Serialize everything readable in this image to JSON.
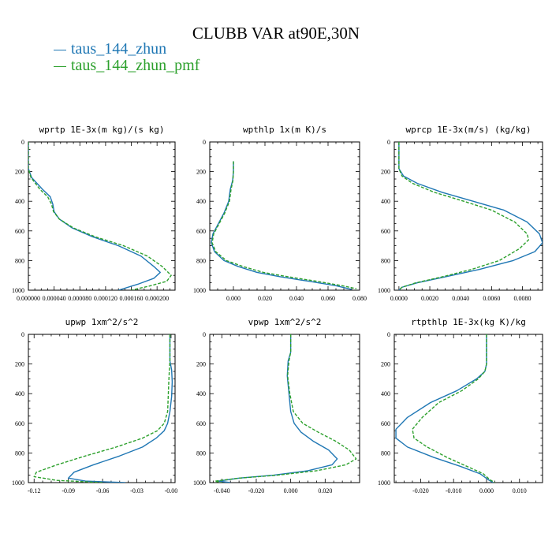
{
  "title": "CLUBB VAR at90E,30N",
  "legend": [
    {
      "label": "taus_144_zhun",
      "color": "#1f77b4"
    },
    {
      "label": "taus_144_zhun_pmf",
      "color": "#2ca02c"
    }
  ],
  "chart_data": [
    {
      "type": "line",
      "title": "wprtp  1E-3x(m kg)/(s kg)",
      "xlim": [
        0.0,
        0.000228
      ],
      "ylim": [
        0,
        1000
      ],
      "y_inverted": true,
      "xticks": [
        0.0,
        4e-05,
        8e-05,
        0.00012,
        0.00016,
        0.0002
      ],
      "xtick_labels": [
        "0.000000",
        "0.000040",
        "0.000080",
        "0.000120",
        "0.000160",
        "0.000200"
      ],
      "yticks": [
        0,
        200,
        400,
        600,
        800,
        1000
      ],
      "series": [
        {
          "name": "taus_144_zhun",
          "color": "#1f77b4",
          "dash": "solid",
          "x": [
            0.0,
            0.0,
            5e-06,
            2.2e-05,
            3.4e-05,
            3.8e-05,
            4e-05,
            4.8e-05,
            6.8e-05,
            0.0001,
            0.00014,
            0.000175,
            0.000195,
            0.000205,
            0.000195,
            0.00017,
            0.00014
          ],
          "y": [
            0,
            180,
            240,
            320,
            370,
            420,
            470,
            520,
            580,
            640,
            700,
            770,
            840,
            880,
            920,
            960,
            1000
          ]
        },
        {
          "name": "taus_144_zhun_pmf",
          "color": "#2ca02c",
          "dash": "dashed",
          "x": [
            0.0,
            0.0,
            4e-06,
            1.8e-05,
            3e-05,
            3.6e-05,
            3.9e-05,
            4.8e-05,
            7e-05,
            0.000104,
            0.000148,
            0.000185,
            0.000208,
            0.000222,
            0.000215,
            0.00019,
            0.00016
          ],
          "y": [
            0,
            180,
            240,
            320,
            370,
            420,
            470,
            520,
            580,
            640,
            700,
            770,
            840,
            900,
            940,
            970,
            1000
          ]
        }
      ]
    },
    {
      "type": "line",
      "title": "wpthlp  1x(m K)/s",
      "xlim": [
        -0.015,
        0.08
      ],
      "ylim": [
        0,
        1000
      ],
      "y_inverted": true,
      "xticks": [
        0.0,
        0.02,
        0.04,
        0.06,
        0.08
      ],
      "xtick_labels": [
        "0.000",
        "0.020",
        "0.040",
        "0.060",
        "0.080"
      ],
      "yticks": [
        0,
        200,
        400,
        600,
        800,
        1000
      ],
      "series": [
        {
          "name": "taus_144_zhun",
          "color": "#1f77b4",
          "dash": "solid",
          "x": [
            0.0,
            0.0,
            -0.0005,
            -0.002,
            -0.003,
            -0.006,
            -0.01,
            -0.013,
            -0.014,
            -0.012,
            -0.006,
            0.003,
            0.015,
            0.03,
            0.048,
            0.065,
            0.075
          ],
          "y": [
            130,
            200,
            260,
            320,
            400,
            480,
            560,
            620,
            680,
            740,
            800,
            840,
            880,
            910,
            940,
            970,
            995
          ]
        },
        {
          "name": "taus_144_zhun_pmf",
          "color": "#2ca02c",
          "dash": "dashed",
          "x": [
            0.0,
            0.0,
            -0.0003,
            -0.0015,
            -0.0025,
            -0.0055,
            -0.0095,
            -0.0125,
            -0.0135,
            -0.0112,
            -0.0045,
            0.006,
            0.019,
            0.035,
            0.053,
            0.069,
            0.078
          ],
          "y": [
            130,
            200,
            260,
            320,
            400,
            480,
            560,
            620,
            680,
            740,
            800,
            840,
            880,
            910,
            940,
            970,
            990
          ]
        }
      ]
    },
    {
      "type": "line",
      "title": "wprcp  1E-3x(m/s) (kg/kg)",
      "xlim": [
        -0.0003,
        0.0093
      ],
      "ylim": [
        0,
        1000
      ],
      "y_inverted": true,
      "xticks": [
        0.0,
        0.002,
        0.004,
        0.006,
        0.008
      ],
      "xtick_labels": [
        "0.0000",
        "0.0020",
        "0.0040",
        "0.0060",
        "0.0080"
      ],
      "yticks": [
        0,
        200,
        400,
        600,
        800,
        1000
      ],
      "series": [
        {
          "name": "taus_144_zhun",
          "color": "#1f77b4",
          "dash": "solid",
          "x": [
            0.0,
            0.0,
            0.0003,
            0.0012,
            0.0028,
            0.0048,
            0.0068,
            0.0083,
            0.0091,
            0.0093,
            0.0088,
            0.0074,
            0.0052,
            0.003,
            0.0012,
            0.0002,
            0.0
          ],
          "y": [
            0,
            180,
            230,
            280,
            340,
            400,
            460,
            540,
            620,
            680,
            740,
            800,
            860,
            910,
            950,
            980,
            1000
          ]
        },
        {
          "name": "taus_144_zhun_pmf",
          "color": "#2ca02c",
          "dash": "dashed",
          "x": [
            0.0,
            0.0,
            0.0002,
            0.0009,
            0.0023,
            0.0042,
            0.006,
            0.0075,
            0.0083,
            0.0084,
            0.0078,
            0.0065,
            0.0047,
            0.0028,
            0.0011,
            0.0002,
            0.0
          ],
          "y": [
            0,
            180,
            230,
            280,
            340,
            400,
            460,
            540,
            620,
            660,
            720,
            800,
            860,
            910,
            950,
            980,
            1000
          ]
        }
      ]
    },
    {
      "type": "line",
      "title": "upwp  1xm^2/s^2",
      "xlim": [
        -0.125,
        0.0035
      ],
      "ylim": [
        0,
        1000
      ],
      "y_inverted": true,
      "xticks": [
        -0.12,
        -0.09,
        -0.06,
        -0.03,
        0.0
      ],
      "xtick_labels": [
        "-0.12",
        "-0.09",
        "-0.06",
        "-0.03",
        "-0.00"
      ],
      "yticks": [
        0,
        200,
        400,
        600,
        800,
        1000
      ],
      "series": [
        {
          "name": "taus_144_zhun",
          "color": "#1f77b4",
          "dash": "solid",
          "x": [
            -0.001,
            -0.001,
            0.0005,
            0.001,
            0.0005,
            -0.001,
            -0.003,
            -0.006,
            -0.013,
            -0.025,
            -0.045,
            -0.068,
            -0.085,
            -0.09,
            -0.075,
            -0.04
          ],
          "y": [
            0,
            180,
            240,
            320,
            420,
            520,
            600,
            650,
            700,
            760,
            820,
            880,
            930,
            970,
            990,
            1000
          ]
        },
        {
          "name": "taus_144_zhun_pmf",
          "color": "#2ca02c",
          "dash": "dashed",
          "x": [
            -0.001,
            -0.001,
            -0.0015,
            -0.002,
            -0.0025,
            -0.003,
            -0.006,
            -0.012,
            -0.025,
            -0.048,
            -0.075,
            -0.1,
            -0.118,
            -0.12,
            -0.1,
            -0.06
          ],
          "y": [
            0,
            180,
            240,
            320,
            420,
            520,
            600,
            650,
            700,
            760,
            820,
            880,
            930,
            960,
            985,
            1000
          ]
        }
      ]
    },
    {
      "type": "line",
      "title": "vpwp  1xm^2/s^2",
      "xlim": [
        -0.047,
        0.04
      ],
      "ylim": [
        0,
        1000
      ],
      "y_inverted": true,
      "xticks": [
        -0.04,
        -0.02,
        0.0,
        0.02
      ],
      "xtick_labels": [
        "-0.040",
        "-0.020",
        "0.000",
        "0.020"
      ],
      "yticks": [
        0,
        200,
        400,
        600,
        800,
        1000
      ],
      "series": [
        {
          "name": "taus_144_zhun",
          "color": "#1f77b4",
          "dash": "solid",
          "x": [
            0.0,
            0.0,
            -0.0015,
            -0.002,
            -0.001,
            0.0,
            0.002,
            0.006,
            0.013,
            0.022,
            0.027,
            0.024,
            0.01,
            -0.01,
            -0.03,
            -0.042,
            -0.035
          ],
          "y": [
            0,
            120,
            180,
            280,
            400,
            520,
            600,
            660,
            720,
            780,
            840,
            880,
            920,
            950,
            970,
            990,
            1000
          ]
        },
        {
          "name": "taus_144_zhun_pmf",
          "color": "#2ca02c",
          "dash": "dashed",
          "x": [
            0.0,
            0.0,
            -0.001,
            -0.0018,
            -0.0005,
            0.0015,
            0.007,
            0.016,
            0.026,
            0.034,
            0.038,
            0.032,
            0.015,
            -0.008,
            -0.03,
            -0.044,
            -0.04
          ],
          "y": [
            0,
            120,
            180,
            280,
            400,
            520,
            600,
            660,
            720,
            780,
            840,
            880,
            920,
            950,
            970,
            990,
            1000
          ]
        }
      ]
    },
    {
      "type": "line",
      "title": "rtpthlp  1E-3x(kg K)/kg",
      "xlim": [
        -0.028,
        0.017
      ],
      "ylim": [
        0,
        1000
      ],
      "y_inverted": true,
      "xticks": [
        -0.02,
        -0.01,
        0.0,
        0.01
      ],
      "xtick_labels": [
        "-0.020",
        "-0.010",
        "0.000",
        "0.010"
      ],
      "yticks": [
        0,
        200,
        400,
        600,
        800,
        1000
      ],
      "series": [
        {
          "name": "taus_144_zhun",
          "color": "#1f77b4",
          "dash": "solid",
          "x": [
            0.0,
            0.0,
            -0.0005,
            -0.003,
            -0.009,
            -0.017,
            -0.024,
            -0.0275,
            -0.0275,
            -0.024,
            -0.016,
            -0.008,
            -0.002,
            0.0005,
            0.002
          ],
          "y": [
            0,
            200,
            250,
            300,
            380,
            460,
            560,
            640,
            700,
            760,
            830,
            890,
            940,
            980,
            1000
          ]
        },
        {
          "name": "taus_144_zhun_pmf",
          "color": "#2ca02c",
          "dash": "dashed",
          "x": [
            0.0,
            0.0,
            -0.0005,
            -0.0025,
            -0.0075,
            -0.0145,
            -0.0195,
            -0.0225,
            -0.022,
            -0.018,
            -0.012,
            -0.006,
            -0.001,
            0.001,
            0.0025
          ],
          "y": [
            0,
            200,
            250,
            300,
            380,
            460,
            560,
            640,
            700,
            760,
            830,
            890,
            940,
            980,
            1000
          ]
        }
      ]
    }
  ]
}
